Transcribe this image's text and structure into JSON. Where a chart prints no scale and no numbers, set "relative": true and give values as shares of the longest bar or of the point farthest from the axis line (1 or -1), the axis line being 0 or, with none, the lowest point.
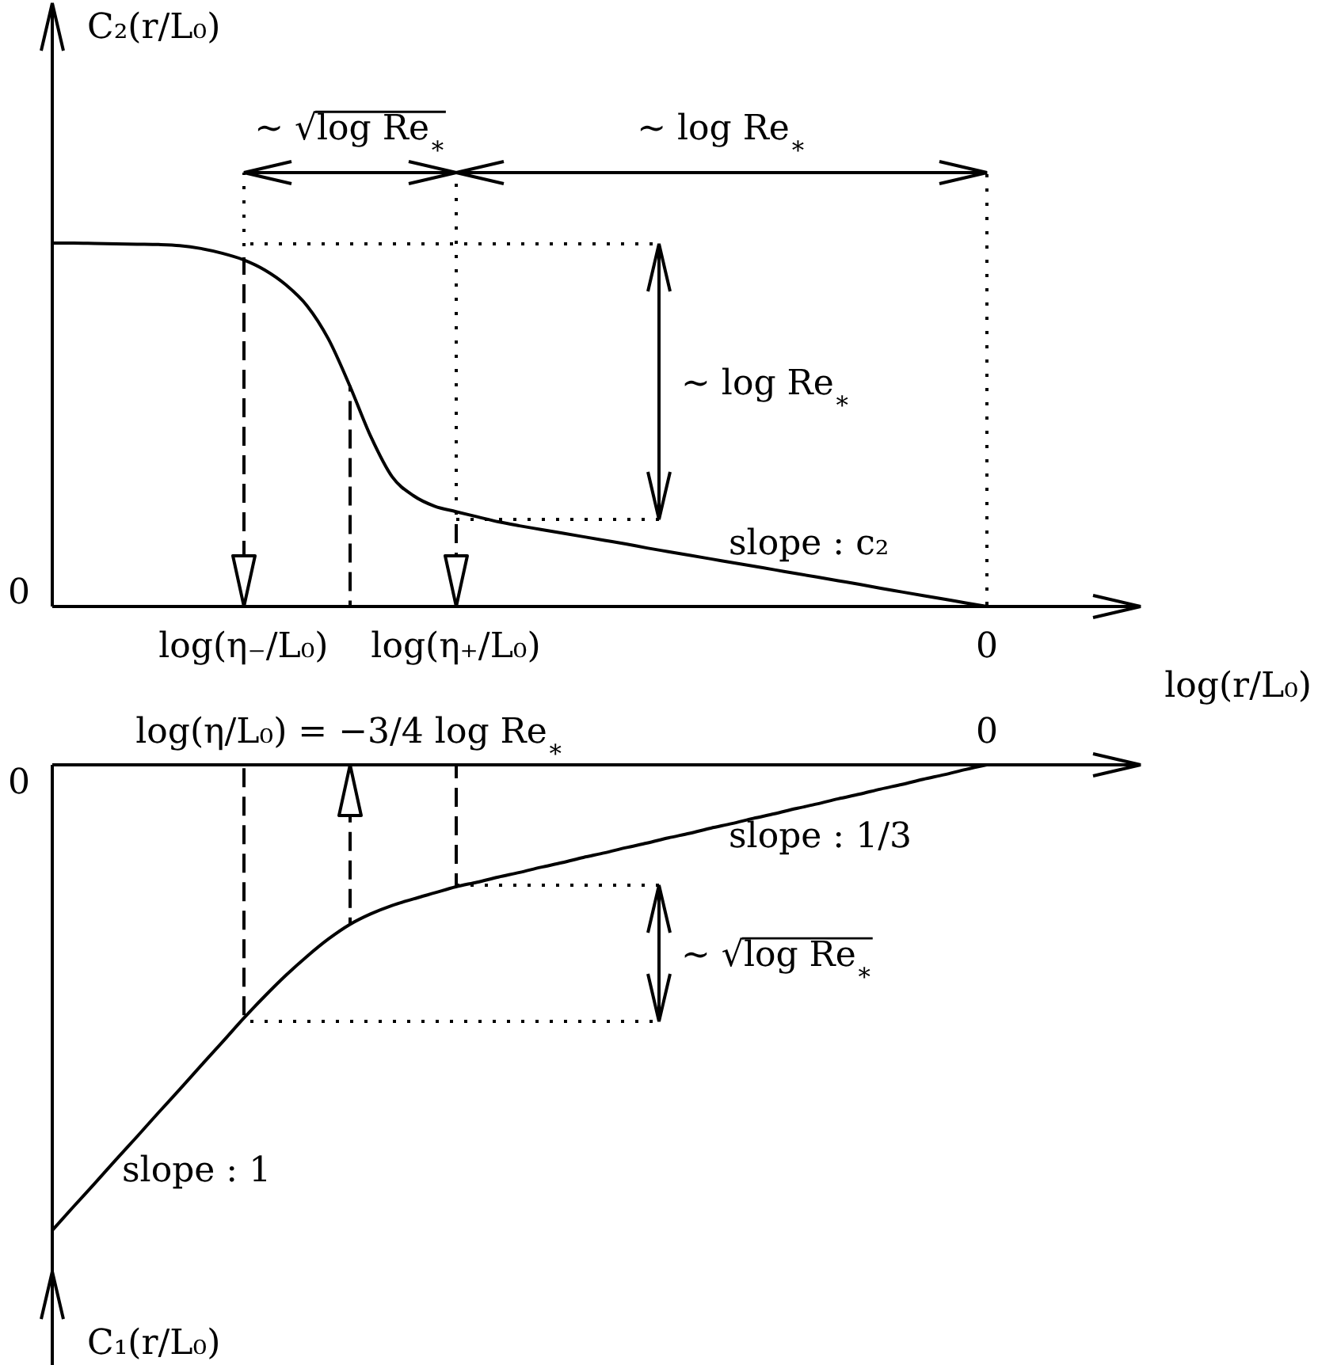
{
  "chart_data": [
    {
      "type": "line",
      "ylabel": "C₂(r/L₀)",
      "xlabel": "log(r/L₀)",
      "relative": true,
      "grid": "x",
      "categories": [
        null,
        null,
        null,
        null,
        null,
        null,
        null,
        null,
        null,
        "log(η₋/L₀)",
        null,
        null,
        null,
        null,
        null,
        null,
        null,
        null,
        null,
        "log(η₊/L₀)",
        null,
        null,
        null,
        null,
        null,
        null,
        null,
        null,
        null,
        null,
        null,
        null,
        null,
        null,
        null,
        null,
        null,
        null,
        null,
        null,
        null,
        null,
        null,
        null,
        "0"
      ],
      "series": [
        {
          "color": "#000000",
          "values": [
            1,
            1,
            0.999,
            0.998,
            0.997,
            0.996,
            0.993,
            0.985,
            0.972,
            0.954,
            0.926,
            0.885,
            0.827,
            0.736,
            0.608,
            0.467,
            0.357,
            0.305,
            0.276,
            0.261,
            0.247,
            0.233,
            0.222,
            0.212,
            0.202,
            0.192,
            0.182,
            0.172,
            0.161,
            0.151,
            0.141,
            0.131,
            0.121,
            0.111,
            0.101,
            0.091,
            0.081,
            0.071,
            0.061,
            0.05,
            0.04,
            0.03,
            0.02,
            0.01,
            0
          ]
        }
      ],
      "ref_lines": [
        {
          "axis": "y",
          "value": 1,
          "line_style": "dotted"
        },
        {
          "axis": "y",
          "value": 0.24,
          "line_style": "dotted"
        }
      ],
      "annotations": [
        "∼ √log Re$_{∗}$",
        "∼ log Re$_{∗}$",
        "∼ log Re$_{∗}$",
        "slope : c₂",
        "0"
      ]
    },
    {
      "type": "line",
      "relative": true,
      "categories": [
        null,
        null,
        null,
        null,
        null,
        null,
        null,
        null,
        null,
        null,
        null,
        null,
        null,
        null,
        "log(η/L₀) = −3/4 log Re$_{∗}$",
        null,
        null,
        null,
        null,
        null,
        null,
        null,
        null,
        null,
        null,
        null,
        null,
        null,
        null,
        null,
        null,
        null,
        null,
        null,
        null,
        null,
        null,
        null,
        null,
        null,
        null,
        null,
        null,
        null,
        "0"
      ],
      "series": [
        {
          "color": "#000000",
          "values": [
            -1,
            -0.949,
            -0.899,
            -0.848,
            -0.798,
            -0.747,
            -0.697,
            -0.646,
            -0.596,
            -0.545,
            -0.497,
            -0.452,
            -0.411,
            -0.374,
            -0.343,
            -0.32,
            -0.302,
            -0.288,
            -0.275,
            -0.262,
            -0.252,
            -0.241,
            -0.231,
            -0.22,
            -0.21,
            -0.199,
            -0.189,
            -0.178,
            -0.168,
            -0.157,
            -0.147,
            -0.136,
            -0.126,
            -0.115,
            -0.105,
            -0.094,
            -0.084,
            -0.073,
            -0.063,
            -0.052,
            -0.042,
            -0.031,
            -0.021,
            -0.01,
            0
          ]
        }
      ],
      "ref_lines": [
        {
          "axis": "y",
          "value": -0.26,
          "line_style": "dotted"
        },
        {
          "axis": "y",
          "value": -0.55,
          "line_style": "dotted"
        }
      ],
      "annotations": [
        "slope : 1/3",
        "∼ √log Re$_{∗}$",
        "slope : 1",
        "0",
        "C₁(r/L₀)"
      ]
    }
  ]
}
